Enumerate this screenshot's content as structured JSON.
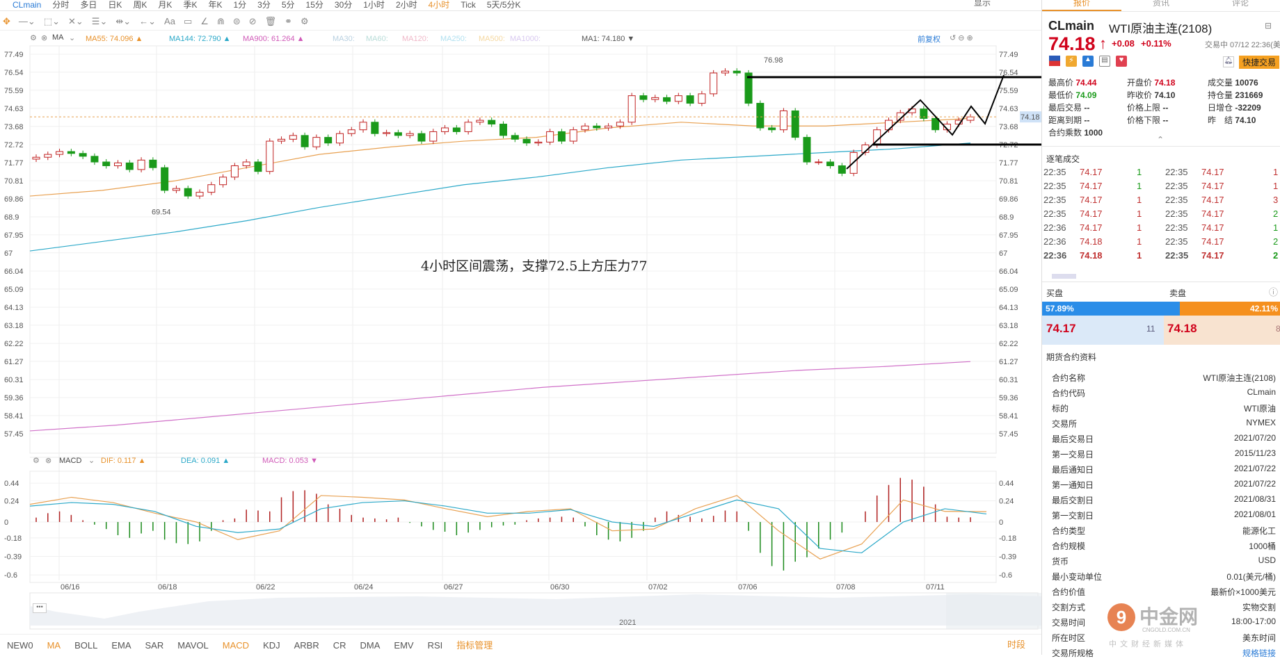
{
  "topnav": {
    "symbol": "CLmain",
    "items": [
      "分时",
      "多日",
      "日K",
      "周K",
      "月K",
      "季K",
      "年K",
      "1分",
      "3分",
      "5分",
      "15分",
      "30分",
      "1小时",
      "2小时",
      "4小时",
      "Tick",
      "5天/5分K"
    ],
    "active": "4小时",
    "right": "显示"
  },
  "toolbar": {
    "icons": [
      "move-icon",
      "line-icon",
      "rect-icon",
      "fib-icon",
      "channel-icon",
      "measure-icon",
      "arrow-icon",
      "text-icon",
      "note-icon",
      "angle-icon",
      "magnet-icon",
      "lock-icon",
      "hide-icon",
      "trash-icon",
      "link-icon",
      "settings-icon"
    ],
    "text_label": "Aa"
  },
  "ma_legend": {
    "name": "MA",
    "items": [
      {
        "label": "MA55: 74.096 ▲",
        "color": "#e8912a"
      },
      {
        "label": "MA144: 72.790 ▲",
        "color": "#2aa8c8"
      },
      {
        "label": "MA900: 61.264 ▲",
        "color": "#d05ab8"
      },
      {
        "label": "MA30:",
        "color": "#b8d0e0"
      },
      {
        "label": "MA60:",
        "color": "#b8dcd8"
      },
      {
        "label": "MA120:",
        "color": "#f0b8c8"
      },
      {
        "label": "MA250:",
        "color": "#b0e0f0"
      },
      {
        "label": "MA500:",
        "color": "#f5d8a0"
      },
      {
        "label": "MA1000:",
        "color": "#d8c8f0"
      },
      {
        "label": "MA1: 74.180 ▼",
        "color": "#555555"
      }
    ],
    "adjust": "前复权"
  },
  "annotation": "4小时区间震荡，支撑72.5上方压力77",
  "chart_data": [
    {
      "type": "candlestick",
      "title": "CLmain 4小时",
      "yticks": [
        77.49,
        76.54,
        75.59,
        74.63,
        73.68,
        72.72,
        71.77,
        70.81,
        69.86,
        68.9,
        67.95,
        67.0,
        66.04,
        65.09,
        64.13,
        63.18,
        62.22,
        61.27,
        60.31,
        59.36,
        58.41,
        57.45
      ],
      "ylim": [
        57.45,
        77.49
      ],
      "xticks": [
        "06/16",
        "06/18",
        "06/22",
        "06/24",
        "06/27",
        "06/30",
        "07/02",
        "07/06",
        "07/08",
        "07/11"
      ],
      "current_price": "74.18",
      "max_label": "76.98",
      "min_label": "69.54",
      "closes": [
        72.05,
        72.2,
        72.35,
        72.25,
        72.1,
        71.8,
        71.6,
        71.75,
        71.4,
        71.9,
        71.5,
        70.3,
        70.4,
        70.0,
        70.2,
        70.6,
        71.0,
        71.6,
        71.8,
        71.3,
        72.9,
        73.0,
        73.2,
        72.6,
        73.1,
        72.8,
        73.3,
        73.5,
        73.9,
        73.3,
        73.35,
        73.2,
        73.3,
        72.9,
        73.4,
        73.6,
        73.4,
        73.9,
        74.0,
        73.8,
        73.2,
        73.0,
        72.8,
        72.85,
        73.4,
        72.9,
        73.5,
        73.7,
        73.6,
        73.7,
        73.9,
        75.3,
        75.1,
        75.2,
        75.0,
        75.3,
        74.9,
        75.4,
        76.5,
        76.6,
        76.5,
        74.9,
        73.6,
        73.5,
        74.5,
        73.1,
        71.8,
        71.8,
        71.6,
        71.2,
        72.3,
        72.7,
        73.5,
        74.0,
        74.4,
        74.6,
        74.1,
        73.5,
        73.8,
        74.0,
        74.18
      ],
      "first_open": 71.95,
      "ma55": [
        70.0,
        70.3,
        70.8,
        71.5,
        72.2,
        72.6,
        72.9,
        73.1,
        73.6,
        73.9,
        73.7,
        73.7,
        73.9,
        74.1
      ],
      "ma144": [
        67.1,
        67.6,
        68.1,
        68.7,
        69.4,
        70.0,
        70.6,
        71.0,
        71.5,
        71.9,
        72.1,
        72.3,
        72.5,
        72.8
      ],
      "ma900": [
        57.6,
        57.9,
        58.3,
        58.7,
        59.1,
        59.5,
        59.9,
        60.2,
        60.5,
        60.8,
        61.0,
        61.26
      ]
    },
    {
      "type": "bar+line",
      "title": "MACD",
      "legend": {
        "name": "MACD",
        "dif": "DIF: 0.117 ▲",
        "dea": "DEA: 0.091 ▲",
        "macd": "MACD: 0.053 ▼"
      },
      "yticks": [
        0.44,
        0.24,
        0.0,
        -0.18,
        -0.39,
        -0.6
      ],
      "ylim": [
        -0.6,
        0.44
      ],
      "hist": [
        0.05,
        0.1,
        0.12,
        0.08,
        0.02,
        -0.03,
        -0.08,
        -0.15,
        -0.18,
        -0.13,
        -0.1,
        -0.2,
        -0.24,
        -0.25,
        -0.22,
        -0.1,
        0.02,
        0.04,
        0.14,
        0.13,
        0.12,
        0.28,
        0.35,
        0.36,
        0.32,
        0.2,
        0.15,
        0.08,
        0.05,
        0.04,
        0.03,
        0.05,
        -0.01,
        -0.05,
        -0.09,
        -0.11,
        -0.15,
        -0.12,
        -0.09,
        -0.06,
        -0.04,
        -0.03,
        0.02,
        0.04,
        0.05,
        0.06,
        0.05,
        -0.05,
        -0.15,
        -0.2,
        -0.22,
        -0.18,
        -0.1,
        0.05,
        0.12,
        0.08,
        0.06,
        0.04,
        0.07,
        0.13,
        0.12,
        -0.1,
        -0.35,
        -0.5,
        -0.55,
        -0.45,
        -0.4,
        -0.3,
        -0.2,
        -0.12,
        0.0,
        0.12,
        0.3,
        0.42,
        0.5,
        0.48,
        0.4,
        0.2,
        0.06,
        0.05,
        0.053
      ],
      "dif": [
        0.2,
        0.28,
        0.22,
        0.1,
        0.0,
        -0.2,
        -0.1,
        0.3,
        0.28,
        0.25,
        0.15,
        0.06,
        0.12,
        0.15,
        -0.1,
        -0.08,
        0.15,
        0.3,
        -0.1,
        -0.42,
        -0.25,
        0.25,
        0.12,
        0.117
      ],
      "dea": [
        0.18,
        0.22,
        0.2,
        0.12,
        -0.05,
        -0.12,
        -0.08,
        0.15,
        0.22,
        0.24,
        0.18,
        0.1,
        0.1,
        0.14,
        0.0,
        -0.05,
        0.1,
        0.25,
        0.15,
        -0.3,
        -0.35,
        0.0,
        0.15,
        0.091
      ]
    }
  ],
  "navigator": {
    "year": "2021"
  },
  "bottombar": {
    "items": [
      "NEW0",
      "MA",
      "BOLL",
      "EMA",
      "SAR",
      "MAVOL",
      "MACD",
      "KDJ",
      "ARBR",
      "CR",
      "DMA",
      "EMV",
      "RSI",
      "指标管理"
    ],
    "active": [
      "MA",
      "MACD",
      "指标管理"
    ],
    "right": "时段"
  },
  "right": {
    "tabs": [
      "报价",
      "资讯",
      "评论"
    ],
    "symbol": "CLmain",
    "name": "WTI原油主连(2108)",
    "price": "74.18",
    "arrow": "↑",
    "change": "+0.08",
    "pct": "+0.11%",
    "status": "交易中 07/12 22:36(美东",
    "quick_trade": "快捷交易",
    "stats": [
      [
        {
          "k": "最高价",
          "v": "74.44",
          "c": "red"
        },
        {
          "k": "开盘价",
          "v": "74.18",
          "c": "red"
        },
        {
          "k": "成交量",
          "v": "10076",
          "c": ""
        }
      ],
      [
        {
          "k": "最低价",
          "v": "74.09",
          "c": "green"
        },
        {
          "k": "昨收价",
          "v": "74.10",
          "c": ""
        },
        {
          "k": "持仓量",
          "v": "231669",
          "c": ""
        }
      ],
      [
        {
          "k": "最后交易",
          "v": "--",
          "c": ""
        },
        {
          "k": "价格上限",
          "v": "--",
          "c": ""
        },
        {
          "k": "日增仓",
          "v": "-32209",
          "c": ""
        }
      ],
      [
        {
          "k": "距离到期",
          "v": "--",
          "c": ""
        },
        {
          "k": "价格下限",
          "v": "--",
          "c": ""
        },
        {
          "k": "昨　结",
          "v": "74.10",
          "c": ""
        }
      ],
      [
        {
          "k": "合约乘数",
          "v": "1000",
          "c": ""
        }
      ]
    ],
    "trades_title": "逐笔成交",
    "trades": [
      [
        "22:35",
        "74.17",
        "1",
        "22:35",
        "74.17",
        "1"
      ],
      [
        "22:35",
        "74.17",
        "1",
        "22:35",
        "74.17",
        "1"
      ],
      [
        "22:35",
        "74.17",
        "1",
        "22:35",
        "74.17",
        "3"
      ],
      [
        "22:35",
        "74.17",
        "1",
        "22:35",
        "74.17",
        "2"
      ],
      [
        "22:36",
        "74.17",
        "1",
        "22:35",
        "74.17",
        "1"
      ],
      [
        "22:36",
        "74.18",
        "1",
        "22:35",
        "74.17",
        "2"
      ],
      [
        "22:36",
        "74.18",
        "1",
        "22:35",
        "74.17",
        "2"
      ]
    ],
    "bid_label": "买盘",
    "ask_label": "卖盘",
    "bid_pct": "57.89%",
    "ask_pct": "42.11%",
    "bid_ratio": 57.89,
    "bid_price": "74.17",
    "bid_qty": "11",
    "ask_price": "74.18",
    "ask_qty": "8",
    "info_title": "期货合约资料",
    "info": [
      [
        "合约名称",
        "WTI原油主连(2108)"
      ],
      [
        "合约代码",
        "CLmain"
      ],
      [
        "标的",
        "WTI原油"
      ],
      [
        "交易所",
        "NYMEX"
      ],
      [
        "最后交易日",
        "2021/07/20"
      ],
      [
        "第一交易日",
        "2015/11/23"
      ],
      [
        "最后通知日",
        "2021/07/22"
      ],
      [
        "第一通知日",
        "2021/07/22"
      ],
      [
        "最后交割日",
        "2021/08/31"
      ],
      [
        "第一交割日",
        "2021/08/01"
      ],
      [
        "合约类型",
        "能源化工"
      ],
      [
        "合约规模",
        "1000桶"
      ],
      [
        "货币",
        "USD"
      ],
      [
        "最小变动单位",
        "0.01(美元/桶)"
      ],
      [
        "合约价值",
        "最新价×1000美元"
      ],
      [
        "交割方式",
        "实物交割"
      ],
      [
        "交易时间",
        "18:00-17:00"
      ],
      [
        "所在时区",
        "美东时间"
      ],
      [
        "交易所规格",
        "规格链接"
      ]
    ],
    "watermark": {
      "brand": "中金网",
      "domain": "CNGOLD.COM.CN",
      "tagline": "中 文 财 经 新 媒 体"
    }
  }
}
